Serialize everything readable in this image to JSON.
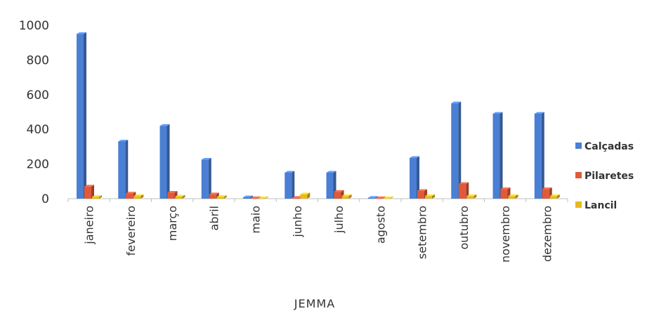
{
  "chart_data": {
    "type": "bar",
    "title": "",
    "xlabel": "JEMMA",
    "ylabel": "",
    "ylim": [
      0,
      1000
    ],
    "yticks": [
      0,
      200,
      400,
      600,
      800,
      1000
    ],
    "grid": false,
    "legend_position": "right",
    "categories": [
      "janeiro",
      "fevereiro",
      "março",
      "abril",
      "maio",
      "junho",
      "julho",
      "agosto",
      "setembro",
      "outubro",
      "novembro",
      "dezembro"
    ],
    "series": [
      {
        "name": "Calçadas",
        "color": "#4a7fd4",
        "values": [
          950,
          330,
          420,
          225,
          8,
          150,
          150,
          5,
          235,
          550,
          490,
          490
        ]
      },
      {
        "name": "Pilaretes",
        "color": "#e05a3a",
        "values": [
          70,
          30,
          35,
          25,
          3,
          5,
          40,
          3,
          45,
          85,
          55,
          55
        ]
      },
      {
        "name": "Lancil",
        "color": "#e8b820",
        "values": [
          10,
          15,
          12,
          10,
          3,
          25,
          15,
          3,
          15,
          15,
          15,
          15
        ]
      }
    ]
  }
}
